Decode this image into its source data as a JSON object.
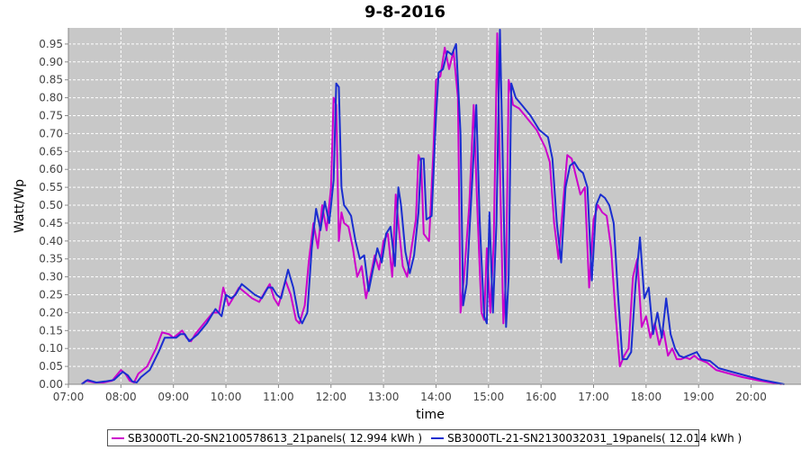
{
  "chart_data": {
    "type": "line",
    "title": "9-8-2016",
    "xlabel": "time",
    "ylabel": "Watt/Wp",
    "xlim": [
      "07:00",
      "20:57"
    ],
    "ylim": [
      0,
      0.995
    ],
    "x_ticks": [
      "07:00",
      "08:00",
      "09:00",
      "10:00",
      "11:00",
      "12:00",
      "13:00",
      "14:00",
      "15:00",
      "16:00",
      "17:00",
      "18:00",
      "19:00",
      "20:00"
    ],
    "y_ticks": [
      "0.00",
      "0.05",
      "0.10",
      "0.15",
      "0.20",
      "0.25",
      "0.30",
      "0.35",
      "0.40",
      "0.45",
      "0.50",
      "0.55",
      "0.60",
      "0.65",
      "0.70",
      "0.75",
      "0.80",
      "0.85",
      "0.90",
      "0.95"
    ],
    "grid": true,
    "background": "#c8c8c8",
    "legend_position": "bottom",
    "series": [
      {
        "name": "SB3000TL-20-SN2100578613_21panels( 12.994 kWh )",
        "color": "#cc00cc",
        "points": [
          [
            "07:15",
            0.0
          ],
          [
            "07:20",
            0.01
          ],
          [
            "07:30",
            0.005
          ],
          [
            "07:40",
            0.005
          ],
          [
            "07:50",
            0.01
          ],
          [
            "08:00",
            0.04
          ],
          [
            "08:05",
            0.03
          ],
          [
            "08:10",
            0.01
          ],
          [
            "08:15",
            0.005
          ],
          [
            "08:20",
            0.03
          ],
          [
            "08:30",
            0.05
          ],
          [
            "08:40",
            0.1
          ],
          [
            "08:47",
            0.145
          ],
          [
            "08:55",
            0.14
          ],
          [
            "09:00",
            0.13
          ],
          [
            "09:05",
            0.14
          ],
          [
            "09:10",
            0.15
          ],
          [
            "09:15",
            0.13
          ],
          [
            "09:20",
            0.12
          ],
          [
            "09:25",
            0.14
          ],
          [
            "09:35",
            0.17
          ],
          [
            "09:45",
            0.2
          ],
          [
            "09:52",
            0.2
          ],
          [
            "09:57",
            0.27
          ],
          [
            "10:03",
            0.22
          ],
          [
            "10:08",
            0.24
          ],
          [
            "10:15",
            0.27
          ],
          [
            "10:20",
            0.26
          ],
          [
            "10:30",
            0.24
          ],
          [
            "10:38",
            0.23
          ],
          [
            "10:45",
            0.26
          ],
          [
            "10:50",
            0.28
          ],
          [
            "10:55",
            0.24
          ],
          [
            "11:00",
            0.22
          ],
          [
            "11:08",
            0.29
          ],
          [
            "11:14",
            0.25
          ],
          [
            "11:20",
            0.18
          ],
          [
            "11:24",
            0.17
          ],
          [
            "11:30",
            0.22
          ],
          [
            "11:35",
            0.35
          ],
          [
            "11:40",
            0.45
          ],
          [
            "11:45",
            0.38
          ],
          [
            "11:50",
            0.5
          ],
          [
            "11:55",
            0.43
          ],
          [
            "12:00",
            0.55
          ],
          [
            "12:03",
            0.8
          ],
          [
            "12:06",
            0.78
          ],
          [
            "12:09",
            0.4
          ],
          [
            "12:12",
            0.48
          ],
          [
            "12:15",
            0.45
          ],
          [
            "12:20",
            0.44
          ],
          [
            "12:25",
            0.38
          ],
          [
            "12:30",
            0.3
          ],
          [
            "12:35",
            0.33
          ],
          [
            "12:40",
            0.24
          ],
          [
            "12:45",
            0.3
          ],
          [
            "12:50",
            0.36
          ],
          [
            "12:55",
            0.32
          ],
          [
            "13:00",
            0.4
          ],
          [
            "13:05",
            0.42
          ],
          [
            "13:10",
            0.3
          ],
          [
            "13:14",
            0.53
          ],
          [
            "13:17",
            0.45
          ],
          [
            "13:22",
            0.33
          ],
          [
            "13:27",
            0.3
          ],
          [
            "13:32",
            0.38
          ],
          [
            "13:37",
            0.46
          ],
          [
            "13:40",
            0.64
          ],
          [
            "13:43",
            0.62
          ],
          [
            "13:46",
            0.42
          ],
          [
            "13:52",
            0.4
          ],
          [
            "13:57",
            0.65
          ],
          [
            "14:00",
            0.85
          ],
          [
            "14:05",
            0.86
          ],
          [
            "14:10",
            0.94
          ],
          [
            "14:15",
            0.88
          ],
          [
            "14:20",
            0.93
          ],
          [
            "14:25",
            0.8
          ],
          [
            "14:28",
            0.2
          ],
          [
            "14:32",
            0.3
          ],
          [
            "14:38",
            0.5
          ],
          [
            "14:43",
            0.78
          ],
          [
            "14:47",
            0.5
          ],
          [
            "14:52",
            0.2
          ],
          [
            "14:55",
            0.18
          ],
          [
            "14:58",
            0.38
          ],
          [
            "15:02",
            0.2
          ],
          [
            "15:06",
            0.4
          ],
          [
            "15:10",
            0.98
          ],
          [
            "15:13",
            0.6
          ],
          [
            "15:17",
            0.17
          ],
          [
            "15:20",
            0.3
          ],
          [
            "15:23",
            0.85
          ],
          [
            "15:28",
            0.78
          ],
          [
            "15:35",
            0.77
          ],
          [
            "15:45",
            0.74
          ],
          [
            "15:55",
            0.71
          ],
          [
            "16:05",
            0.66
          ],
          [
            "16:10",
            0.62
          ],
          [
            "16:15",
            0.45
          ],
          [
            "16:20",
            0.35
          ],
          [
            "16:25",
            0.5
          ],
          [
            "16:30",
            0.64
          ],
          [
            "16:35",
            0.63
          ],
          [
            "16:40",
            0.58
          ],
          [
            "16:45",
            0.53
          ],
          [
            "16:50",
            0.55
          ],
          [
            "16:55",
            0.27
          ],
          [
            "17:00",
            0.46
          ],
          [
            "17:05",
            0.5
          ],
          [
            "17:10",
            0.48
          ],
          [
            "17:15",
            0.47
          ],
          [
            "17:20",
            0.38
          ],
          [
            "17:25",
            0.2
          ],
          [
            "17:30",
            0.05
          ],
          [
            "17:35",
            0.08
          ],
          [
            "17:40",
            0.1
          ],
          [
            "17:45",
            0.3
          ],
          [
            "17:50",
            0.35
          ],
          [
            "17:55",
            0.16
          ],
          [
            "18:00",
            0.19
          ],
          [
            "18:05",
            0.13
          ],
          [
            "18:10",
            0.17
          ],
          [
            "18:15",
            0.11
          ],
          [
            "18:20",
            0.15
          ],
          [
            "18:25",
            0.08
          ],
          [
            "18:30",
            0.1
          ],
          [
            "18:35",
            0.07
          ],
          [
            "18:40",
            0.07
          ],
          [
            "18:45",
            0.075
          ],
          [
            "18:50",
            0.07
          ],
          [
            "18:55",
            0.08
          ],
          [
            "19:00",
            0.07
          ],
          [
            "19:10",
            0.06
          ],
          [
            "19:20",
            0.04
          ],
          [
            "19:35",
            0.03
          ],
          [
            "19:50",
            0.02
          ],
          [
            "20:10",
            0.01
          ],
          [
            "20:35",
            0.0
          ]
        ]
      },
      {
        "name": "SB3000TL-21-SN2130032031_19panels( 12.014 kWh )",
        "color": "#1a2ed0",
        "points": [
          [
            "07:15",
            0.0
          ],
          [
            "07:22",
            0.012
          ],
          [
            "07:32",
            0.005
          ],
          [
            "07:42",
            0.008
          ],
          [
            "07:52",
            0.012
          ],
          [
            "08:02",
            0.035
          ],
          [
            "08:08",
            0.025
          ],
          [
            "08:13",
            0.008
          ],
          [
            "08:18",
            0.005
          ],
          [
            "08:23",
            0.02
          ],
          [
            "08:33",
            0.04
          ],
          [
            "08:43",
            0.09
          ],
          [
            "08:50",
            0.13
          ],
          [
            "08:58",
            0.13
          ],
          [
            "09:03",
            0.13
          ],
          [
            "09:08",
            0.14
          ],
          [
            "09:13",
            0.14
          ],
          [
            "09:18",
            0.12
          ],
          [
            "09:23",
            0.13
          ],
          [
            "09:28",
            0.14
          ],
          [
            "09:38",
            0.17
          ],
          [
            "09:48",
            0.21
          ],
          [
            "09:55",
            0.19
          ],
          [
            "10:00",
            0.25
          ],
          [
            "10:06",
            0.24
          ],
          [
            "10:11",
            0.25
          ],
          [
            "10:18",
            0.28
          ],
          [
            "10:23",
            0.27
          ],
          [
            "10:33",
            0.25
          ],
          [
            "10:41",
            0.24
          ],
          [
            "10:48",
            0.27
          ],
          [
            "10:53",
            0.27
          ],
          [
            "10:58",
            0.25
          ],
          [
            "11:03",
            0.24
          ],
          [
            "11:11",
            0.32
          ],
          [
            "11:17",
            0.27
          ],
          [
            "11:23",
            0.19
          ],
          [
            "11:27",
            0.17
          ],
          [
            "11:33",
            0.2
          ],
          [
            "11:38",
            0.38
          ],
          [
            "11:43",
            0.49
          ],
          [
            "11:48",
            0.43
          ],
          [
            "11:53",
            0.51
          ],
          [
            "11:58",
            0.45
          ],
          [
            "12:03",
            0.57
          ],
          [
            "12:06",
            0.84
          ],
          [
            "12:09",
            0.83
          ],
          [
            "12:12",
            0.55
          ],
          [
            "12:15",
            0.5
          ],
          [
            "12:18",
            0.49
          ],
          [
            "12:23",
            0.47
          ],
          [
            "12:28",
            0.4
          ],
          [
            "12:33",
            0.35
          ],
          [
            "12:38",
            0.36
          ],
          [
            "12:43",
            0.26
          ],
          [
            "12:48",
            0.32
          ],
          [
            "12:53",
            0.38
          ],
          [
            "12:58",
            0.34
          ],
          [
            "13:03",
            0.42
          ],
          [
            "13:08",
            0.44
          ],
          [
            "13:13",
            0.33
          ],
          [
            "13:17",
            0.55
          ],
          [
            "13:20",
            0.5
          ],
          [
            "13:25",
            0.37
          ],
          [
            "13:30",
            0.31
          ],
          [
            "13:35",
            0.36
          ],
          [
            "13:40",
            0.48
          ],
          [
            "13:43",
            0.63
          ],
          [
            "13:46",
            0.63
          ],
          [
            "13:49",
            0.46
          ],
          [
            "13:55",
            0.47
          ],
          [
            "14:00",
            0.75
          ],
          [
            "14:03",
            0.87
          ],
          [
            "14:08",
            0.88
          ],
          [
            "14:13",
            0.93
          ],
          [
            "14:18",
            0.92
          ],
          [
            "14:23",
            0.95
          ],
          [
            "14:28",
            0.7
          ],
          [
            "14:31",
            0.22
          ],
          [
            "14:35",
            0.28
          ],
          [
            "14:41",
            0.55
          ],
          [
            "14:46",
            0.78
          ],
          [
            "14:50",
            0.45
          ],
          [
            "14:55",
            0.19
          ],
          [
            "14:58",
            0.17
          ],
          [
            "15:01",
            0.48
          ],
          [
            "15:05",
            0.2
          ],
          [
            "15:09",
            0.45
          ],
          [
            "15:13",
            0.99
          ],
          [
            "15:16",
            0.65
          ],
          [
            "15:20",
            0.16
          ],
          [
            "15:23",
            0.3
          ],
          [
            "15:26",
            0.84
          ],
          [
            "15:31",
            0.8
          ],
          [
            "15:38",
            0.78
          ],
          [
            "15:48",
            0.75
          ],
          [
            "15:58",
            0.71
          ],
          [
            "16:08",
            0.69
          ],
          [
            "16:13",
            0.63
          ],
          [
            "16:18",
            0.45
          ],
          [
            "16:23",
            0.34
          ],
          [
            "16:28",
            0.55
          ],
          [
            "16:33",
            0.61
          ],
          [
            "16:38",
            0.62
          ],
          [
            "16:43",
            0.6
          ],
          [
            "16:48",
            0.59
          ],
          [
            "16:53",
            0.55
          ],
          [
            "16:58",
            0.29
          ],
          [
            "17:03",
            0.5
          ],
          [
            "17:08",
            0.53
          ],
          [
            "17:13",
            0.52
          ],
          [
            "17:18",
            0.5
          ],
          [
            "17:23",
            0.45
          ],
          [
            "17:28",
            0.25
          ],
          [
            "17:33",
            0.07
          ],
          [
            "17:38",
            0.07
          ],
          [
            "17:43",
            0.09
          ],
          [
            "17:48",
            0.28
          ],
          [
            "17:53",
            0.41
          ],
          [
            "17:58",
            0.24
          ],
          [
            "18:03",
            0.27
          ],
          [
            "18:08",
            0.14
          ],
          [
            "18:13",
            0.2
          ],
          [
            "18:18",
            0.13
          ],
          [
            "18:23",
            0.24
          ],
          [
            "18:28",
            0.14
          ],
          [
            "18:33",
            0.1
          ],
          [
            "18:38",
            0.08
          ],
          [
            "18:43",
            0.075
          ],
          [
            "18:48",
            0.08
          ],
          [
            "18:53",
            0.085
          ],
          [
            "18:58",
            0.09
          ],
          [
            "19:03",
            0.07
          ],
          [
            "19:13",
            0.065
          ],
          [
            "19:23",
            0.045
          ],
          [
            "19:38",
            0.035
          ],
          [
            "19:53",
            0.025
          ],
          [
            "20:13",
            0.012
          ],
          [
            "20:38",
            0.0
          ]
        ]
      }
    ]
  }
}
